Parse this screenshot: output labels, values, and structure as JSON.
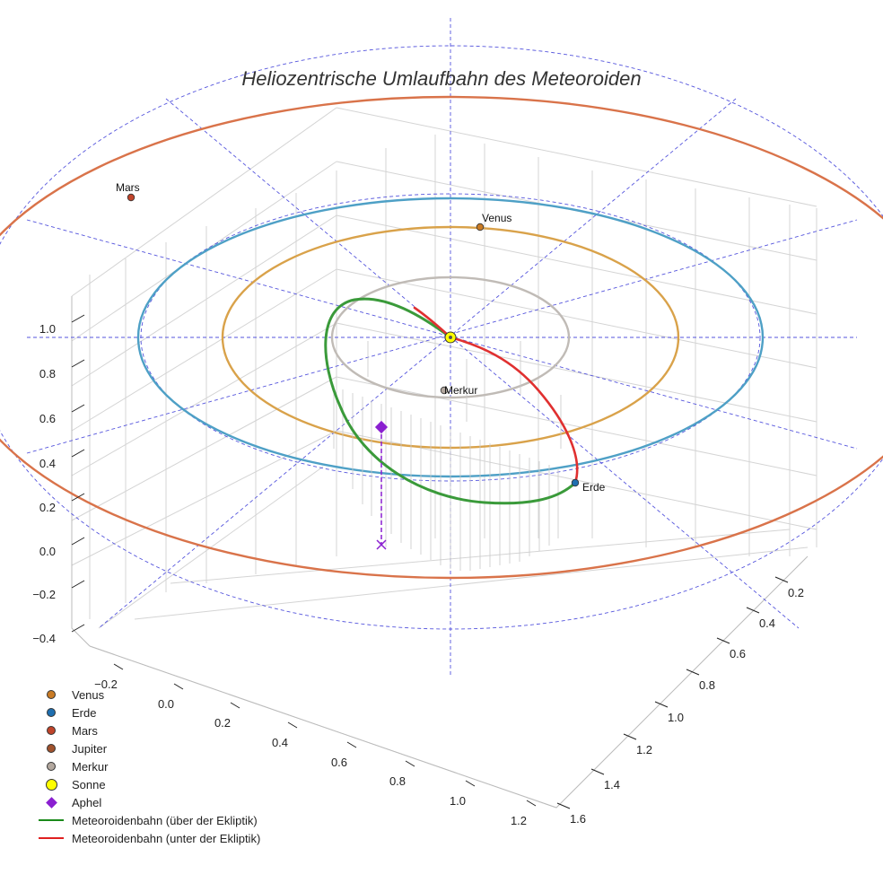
{
  "chart_data": {
    "type": "line",
    "title": "Heliozentrische Umlaufbahn des Meteoroiden",
    "x_axis_ticks": [
      "−0.2",
      "0.0",
      "0.2",
      "0.4",
      "0.6",
      "0.8",
      "1.0",
      "1.2"
    ],
    "y_axis_ticks": [
      "0.2",
      "0.4",
      "0.6",
      "0.8",
      "1.0",
      "1.2",
      "1.4",
      "1.6"
    ],
    "z_axis_ticks": [
      "1.0",
      "0.8",
      "0.6",
      "0.4",
      "0.2",
      "0.0",
      "−0.2",
      "−0.4"
    ],
    "planet_orbits": [
      {
        "name": "Mars",
        "radius_au": 1.52,
        "color": "#d9734a"
      },
      {
        "name": "Erde",
        "radius_au": 1.0,
        "color": "#4ea0c6"
      },
      {
        "name": "Venus",
        "radius_au": 0.72,
        "color": "#d9a24a"
      },
      {
        "name": "Merkur",
        "radius_au": 0.39,
        "color": "#c0bbb6"
      }
    ],
    "planet_labels": {
      "mars": "Mars",
      "venus": "Venus",
      "merkur": "Merkur",
      "erde": "Erde"
    },
    "meteoroid_orbit": {
      "above_ecliptic_color": "#3a9a3a",
      "below_ecliptic_color": "#e03030",
      "aphelion_color": "#8a1fd0"
    },
    "legend": [
      {
        "label": "Venus",
        "kind": "dot",
        "color": "#c97b25"
      },
      {
        "label": "Erde",
        "kind": "dot",
        "color": "#1f6fb0"
      },
      {
        "label": "Mars",
        "kind": "dot",
        "color": "#c0442a"
      },
      {
        "label": "Jupiter",
        "kind": "dot",
        "color": "#a0522d"
      },
      {
        "label": "Merkur",
        "kind": "dot",
        "color": "#b3a89f"
      },
      {
        "label": "Sonne",
        "kind": "sun",
        "color": "#ffff00"
      },
      {
        "label": "Aphel",
        "kind": "diamond",
        "color": "#8a1fd0"
      },
      {
        "label": "Meteoroidenbahn (über der Ekliptik)",
        "kind": "line",
        "color": "#1a8a1a"
      },
      {
        "label": "Meteoroidenbahn (unter der Ekliptik)",
        "kind": "line",
        "color": "#e02020"
      }
    ]
  }
}
